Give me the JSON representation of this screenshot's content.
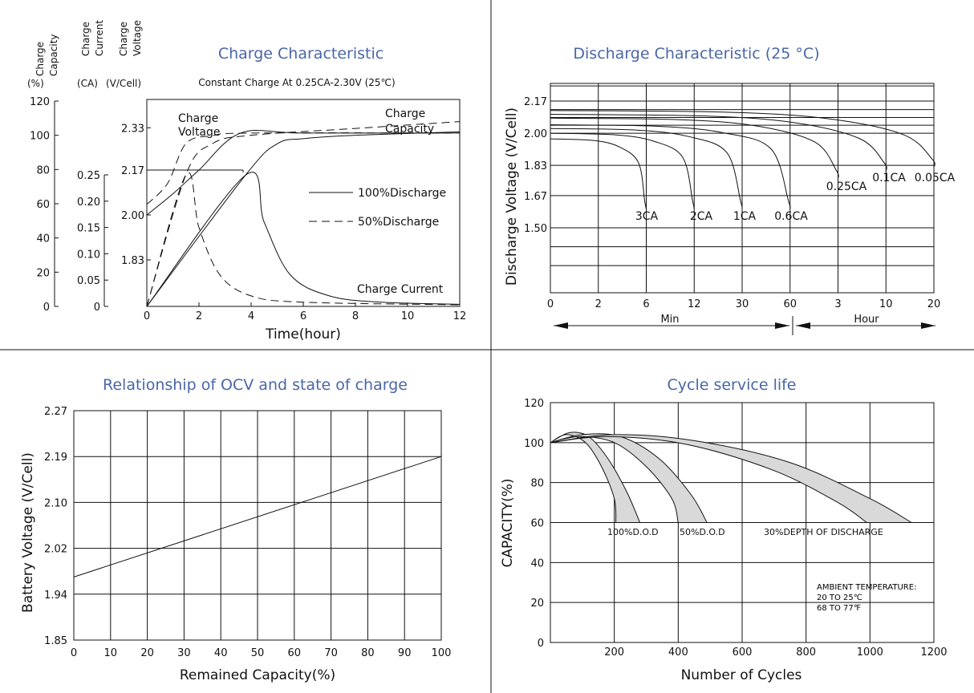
{
  "chart_data": [
    {
      "type": "line",
      "title": "Charge Characteristic",
      "subtitle": "Constant Charge At 0.25CA-2.30V (25℃)",
      "xlabel": "Time(hour)",
      "x_ticks": [
        "0",
        "2",
        "4",
        "6",
        "8",
        "10",
        "12"
      ],
      "xlim": [
        0,
        12
      ],
      "axes": [
        {
          "label": "Charge Capacity",
          "unit": "(%)",
          "ticks": [
            "0",
            "20",
            "40",
            "60",
            "80",
            "100",
            "120"
          ],
          "range": [
            0,
            120
          ]
        },
        {
          "label": "Charge Current",
          "unit": "(CA)",
          "ticks": [
            "0",
            "0.05",
            "0.10",
            "0.15",
            "0.20",
            "0.25"
          ],
          "range": [
            0,
            0.25
          ]
        },
        {
          "label": "Charge Voltage",
          "unit": "(V/Cell)",
          "ticks": [
            "1.83",
            "2.00",
            "2.17",
            "2.33"
          ],
          "range": [
            1.7,
            2.4
          ]
        }
      ],
      "legend": [
        "100%Discharge",
        "50%Discharge"
      ],
      "annotations": [
        "Charge Voltage",
        "Charge Capacity",
        "Charge Current"
      ],
      "series": [
        {
          "name": "100%Discharge",
          "measure": "Charge Voltage",
          "points": [
            [
              0,
              2.0
            ],
            [
              1,
              2.08
            ],
            [
              2,
              2.17
            ],
            [
              3.6,
              2.31
            ],
            [
              6,
              2.31
            ],
            [
              12,
              2.31
            ]
          ]
        },
        {
          "name": "50%Discharge",
          "measure": "Charge Voltage",
          "points": [
            [
              0,
              2.04
            ],
            [
              0.8,
              2.12
            ],
            [
              1.5,
              2.27
            ],
            [
              2.5,
              2.3
            ],
            [
              4,
              2.31
            ],
            [
              12,
              2.31
            ]
          ]
        },
        {
          "name": "100%Discharge",
          "measure": "Charge Capacity",
          "points": [
            [
              0,
              0
            ],
            [
              3.8,
              77
            ],
            [
              5,
              95
            ],
            [
              6,
              98
            ],
            [
              8,
              100
            ],
            [
              12,
              102
            ]
          ]
        },
        {
          "name": "50%Discharge",
          "measure": "Charge Capacity",
          "points": [
            [
              0,
              0
            ],
            [
              1.5,
              77
            ],
            [
              2.5,
              95
            ],
            [
              4,
              100
            ],
            [
              8,
              104
            ],
            [
              12,
              108
            ]
          ]
        },
        {
          "name": "100%Discharge",
          "measure": "Charge Current",
          "points": [
            [
              0,
              0
            ],
            [
              3.8,
              0.25
            ],
            [
              4.5,
              0.16
            ],
            [
              5.5,
              0.06
            ],
            [
              7,
              0.02
            ],
            [
              9,
              0.008
            ],
            [
              12,
              0.004
            ]
          ]
        },
        {
          "name": "50%Discharge",
          "measure": "Charge Current",
          "points": [
            [
              0,
              0
            ],
            [
              1.5,
              0.25
            ],
            [
              2,
              0.15
            ],
            [
              2.8,
              0.06
            ],
            [
              4,
              0.02
            ],
            [
              6,
              0.008
            ],
            [
              12,
              0.003
            ]
          ]
        }
      ]
    },
    {
      "type": "line",
      "title": "Discharge Characteristic (25 °C)",
      "ylabel": "Discharge Voltage (V/Cell)",
      "y_ticks": [
        "1.50",
        "1.67",
        "1.83",
        "2.00",
        "2.17"
      ],
      "ylim": [
        1.2,
        2.3
      ],
      "x_ticks": [
        "0",
        "2",
        "6",
        "12",
        "30",
        "60",
        "3",
        "10",
        "20"
      ],
      "x_groups": [
        "Min",
        "Hour"
      ],
      "series": [
        {
          "name": "3CA",
          "end_x": "6 Min",
          "end_v": 1.6
        },
        {
          "name": "2CA",
          "end_x": "12 Min",
          "end_v": 1.6
        },
        {
          "name": "1CA",
          "end_x": "30 Min",
          "end_v": 1.6
        },
        {
          "name": "0.6CA",
          "end_x": "60 Min",
          "end_v": 1.6
        },
        {
          "name": "0.25CA",
          "end_x": "3 Hour",
          "end_v": 1.76
        },
        {
          "name": "0.1CA",
          "end_x": "10 Hour",
          "end_v": 1.8
        },
        {
          "name": "0.05CA",
          "end_x": "20 Hour",
          "end_v": 1.82
        }
      ]
    },
    {
      "type": "line",
      "title": "Relationship of OCV and state of charge",
      "xlabel": "Remained Capacity(%)",
      "ylabel": "Battery Voltage (V/Cell)",
      "x_ticks": [
        "0",
        "10",
        "20",
        "30",
        "40",
        "50",
        "60",
        "70",
        "80",
        "90",
        "100"
      ],
      "y_ticks": [
        "1.85",
        "1.94",
        "2.02",
        "2.10",
        "2.19",
        "2.27"
      ],
      "xlim": [
        0,
        100
      ],
      "ylim": [
        1.85,
        2.27
      ],
      "series": [
        {
          "points": [
            [
              0,
              1.97
            ],
            [
              100,
              2.19
            ]
          ]
        }
      ]
    },
    {
      "type": "area",
      "title": "Cycle service life",
      "xlabel": "Number of Cycles",
      "ylabel": "CAPACITY(%)",
      "x_ticks": [
        "200",
        "400",
        "600",
        "800",
        "1000",
        "1200"
      ],
      "y_ticks": [
        "0",
        "20",
        "40",
        "60",
        "80",
        "100",
        "120"
      ],
      "xlim": [
        0,
        1200
      ],
      "ylim": [
        0,
        120
      ],
      "labels": [
        "100%D.O.D",
        "50%D.O.D",
        "30%DEPTH OF DISCHARGE"
      ],
      "note": [
        "AMBIENT TEMPERATURE:",
        "20 TO 25℃",
        "68 TO 77℉"
      ],
      "bands": [
        {
          "name": "100%D.O.D",
          "upper": [
            [
              0,
              100
            ],
            [
              60,
              105
            ],
            [
              120,
              103
            ],
            [
              180,
              92
            ],
            [
              240,
              75
            ],
            [
              280,
              60
            ]
          ],
          "lower": [
            [
              0,
              100
            ],
            [
              50,
              104
            ],
            [
              110,
              100
            ],
            [
              160,
              88
            ],
            [
              200,
              72
            ],
            [
              205,
              60
            ]
          ]
        },
        {
          "name": "50%D.O.D",
          "upper": [
            [
              0,
              100
            ],
            [
              100,
              104
            ],
            [
              220,
              103
            ],
            [
              340,
              92
            ],
            [
              440,
              74
            ],
            [
              490,
              60
            ]
          ],
          "lower": [
            [
              0,
              100
            ],
            [
              90,
              103
            ],
            [
              200,
              100
            ],
            [
              300,
              88
            ],
            [
              380,
              72
            ],
            [
              400,
              60
            ]
          ]
        },
        {
          "name": "30%DEPTH OF DISCHARGE",
          "upper": [
            [
              0,
              100
            ],
            [
              200,
              104
            ],
            [
              450,
              101
            ],
            [
              750,
              90
            ],
            [
              1000,
              72
            ],
            [
              1130,
              60
            ]
          ],
          "lower": [
            [
              0,
              100
            ],
            [
              180,
              103
            ],
            [
              430,
              99
            ],
            [
              700,
              86
            ],
            [
              900,
              70
            ],
            [
              990,
              60
            ]
          ]
        }
      ]
    }
  ]
}
